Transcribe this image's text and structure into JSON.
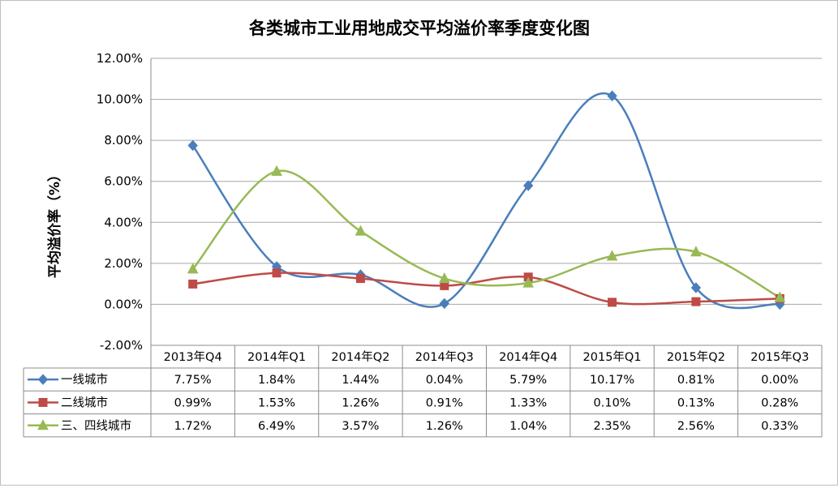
{
  "chart_data": {
    "type": "line",
    "title": "各类城市工业用地成交平均溢价率季度变化图",
    "ylabel": "平均溢价率（%）",
    "xlabel": "",
    "ylim": [
      -2,
      12
    ],
    "yticks": [
      "12.00%",
      "10.00%",
      "8.00%",
      "6.00%",
      "4.00%",
      "2.00%",
      "0.00%",
      "-2.00%"
    ],
    "ytick_values": [
      12,
      10,
      8,
      6,
      4,
      2,
      0,
      -2
    ],
    "categories": [
      "2013年Q4",
      "2014年Q1",
      "2014年Q2",
      "2014年Q3",
      "2014年Q4",
      "2015年Q1",
      "2015年Q2",
      "2015年Q3"
    ],
    "grid": true,
    "legend": "data-table",
    "smooth": true,
    "series": [
      {
        "name": "一线城市",
        "color": "#4a7ebb",
        "marker": "diamond",
        "values": [
          7.75,
          1.84,
          1.44,
          0.04,
          5.79,
          10.17,
          0.81,
          0.0
        ],
        "labels": [
          "7.75%",
          "1.84%",
          "1.44%",
          "0.04%",
          "5.79%",
          "10.17%",
          "0.81%",
          "0.00%"
        ]
      },
      {
        "name": "二线城市",
        "color": "#be4b48",
        "marker": "square",
        "values": [
          0.99,
          1.53,
          1.26,
          0.91,
          1.33,
          0.1,
          0.13,
          0.28
        ],
        "labels": [
          "0.99%",
          "1.53%",
          "1.26%",
          "0.91%",
          "1.33%",
          "0.10%",
          "0.13%",
          "0.28%"
        ]
      },
      {
        "name": "三、四线城市",
        "color": "#98b954",
        "marker": "triangle",
        "values": [
          1.72,
          6.49,
          3.57,
          1.26,
          1.04,
          2.35,
          2.56,
          0.33
        ],
        "labels": [
          "1.72%",
          "6.49%",
          "3.57%",
          "1.26%",
          "1.04%",
          "2.35%",
          "2.56%",
          "0.33%"
        ]
      }
    ]
  }
}
